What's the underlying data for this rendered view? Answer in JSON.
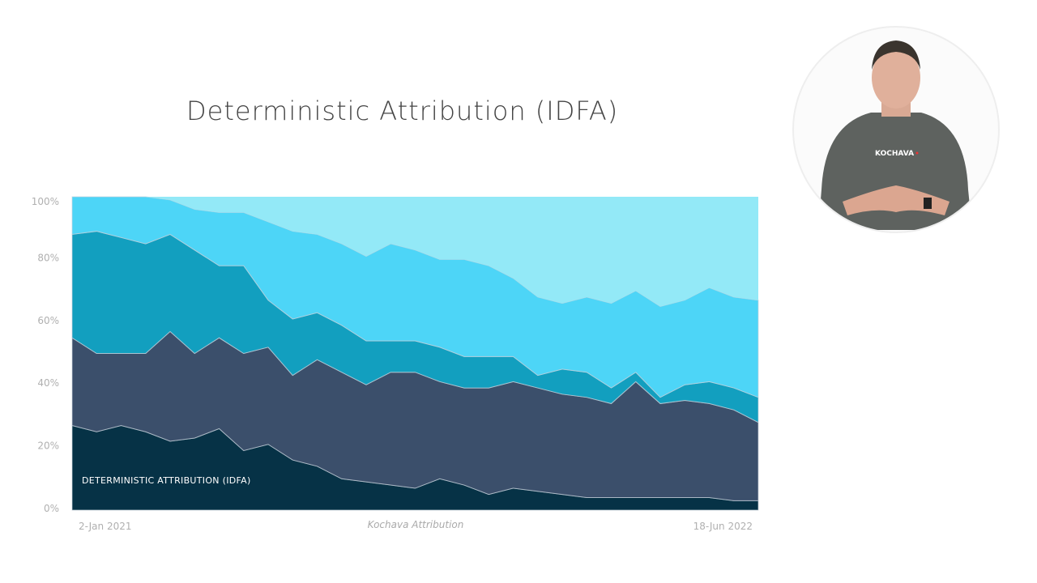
{
  "slide": {
    "title": "Deterministic Attribution (IDFA)"
  },
  "presenter": {
    "shirt_logo": "KOCHAVA"
  },
  "chart_data": {
    "type": "area",
    "stacked": true,
    "normalized": true,
    "title": "",
    "inline_label": "DETERMINISTIC ATTRIBUTION (IDFA)",
    "source": "Kochava Attribution",
    "x_start": "2-Jan 2021",
    "x_end": "18-Jun 2022",
    "x_tick_labels": [
      "2-Jan 2021",
      "18-Jun 2022"
    ],
    "ylim": [
      0,
      100
    ],
    "y_ticks": [
      "0%",
      "20%",
      "40%",
      "60%",
      "80%",
      "100%"
    ],
    "y_unit": "%",
    "grid": false,
    "series": [
      {
        "color": "#063246",
        "values": [
          27,
          25,
          27,
          25,
          22,
          23,
          26,
          19,
          21,
          16,
          14,
          10,
          9,
          8,
          7,
          10,
          8,
          5,
          7,
          6,
          5,
          4,
          4,
          4,
          4,
          4,
          4,
          3,
          3
        ]
      },
      {
        "color": "#3b4f6b",
        "values": [
          28,
          25,
          23,
          25,
          35,
          27,
          29,
          31,
          31,
          27,
          34,
          34,
          31,
          36,
          37,
          31,
          31,
          34,
          34,
          33,
          32,
          32,
          30,
          37,
          30,
          31,
          30,
          29,
          25
        ]
      },
      {
        "color": "#129fbf",
        "values": [
          33,
          39,
          37,
          35,
          31,
          33,
          23,
          28,
          15,
          18,
          15,
          15,
          14,
          10,
          10,
          11,
          10,
          10,
          8,
          4,
          8,
          8,
          5,
          3,
          2,
          5,
          7,
          7,
          8
        ]
      },
      {
        "color": "#4dd5f7",
        "values": [
          12,
          11,
          13,
          15,
          11,
          13,
          17,
          17,
          25,
          28,
          25,
          26,
          27,
          31,
          29,
          28,
          31,
          29,
          25,
          25,
          21,
          24,
          27,
          26,
          29,
          27,
          30,
          29,
          31
        ]
      },
      {
        "color": "#93e9f7",
        "values": [
          0,
          0,
          0,
          0,
          1,
          4,
          5,
          5,
          8,
          11,
          12,
          15,
          19,
          15,
          17,
          20,
          20,
          22,
          26,
          32,
          34,
          32,
          34,
          30,
          35,
          33,
          29,
          32,
          33
        ]
      }
    ]
  }
}
